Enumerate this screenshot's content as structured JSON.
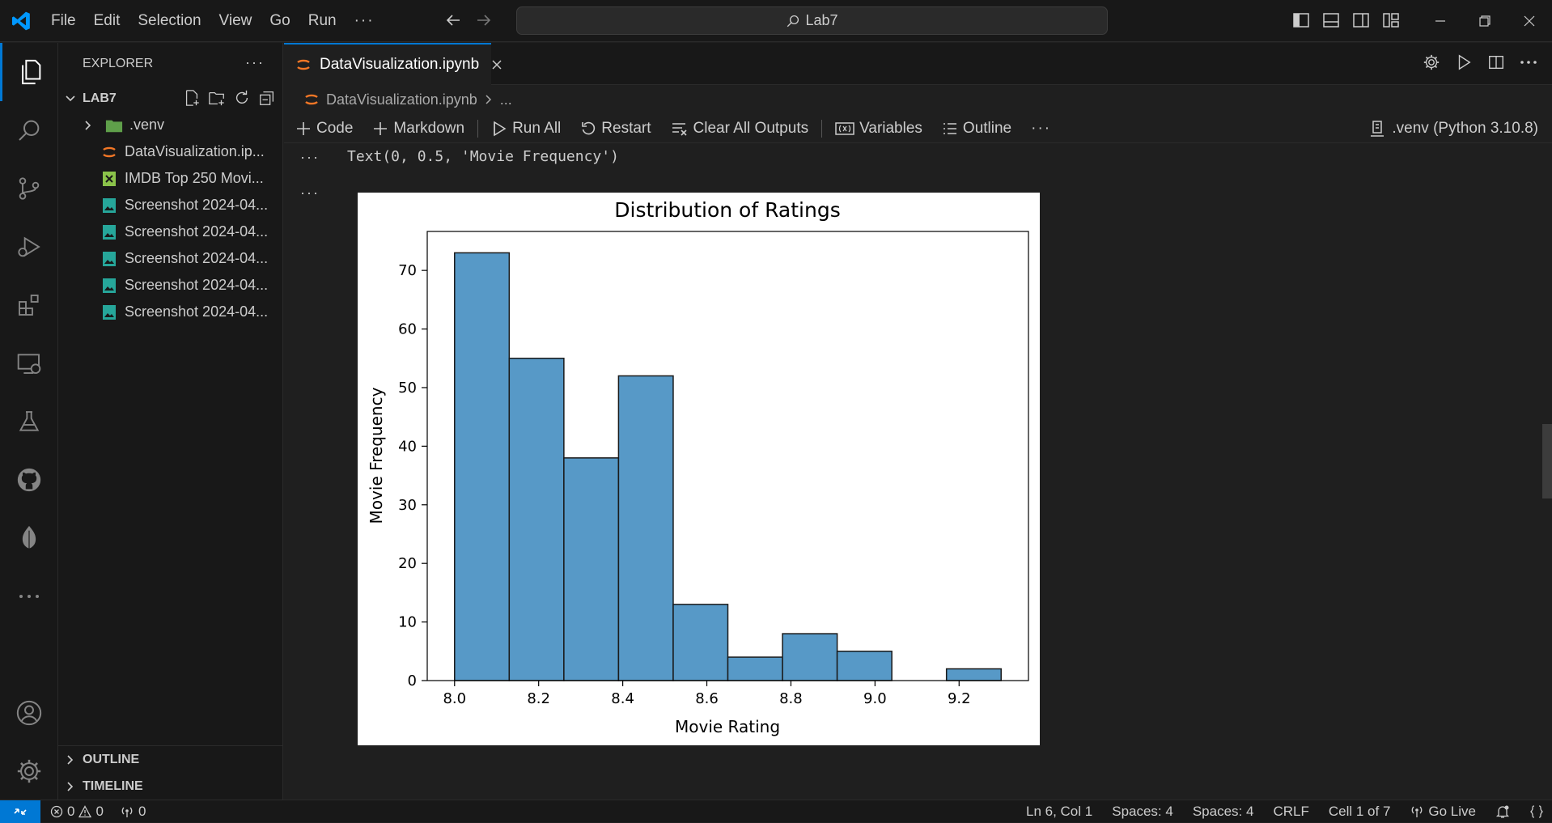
{
  "titlebar": {
    "menu": [
      "File",
      "Edit",
      "Selection",
      "View",
      "Go",
      "Run"
    ],
    "more_label": "···",
    "search_text": "Lab7"
  },
  "sidebar": {
    "title": "EXPLORER",
    "more_label": "···",
    "folder": "LAB7",
    "items": [
      {
        "label": ".venv",
        "icon": "folder-icon"
      },
      {
        "label": "DataVisualization.ip...",
        "icon": "jupyter-icon"
      },
      {
        "label": "IMDB Top 250 Movi...",
        "icon": "excel-icon"
      },
      {
        "label": "Screenshot 2024-04...",
        "icon": "image-icon"
      },
      {
        "label": "Screenshot 2024-04...",
        "icon": "image-icon"
      },
      {
        "label": "Screenshot 2024-04...",
        "icon": "image-icon"
      },
      {
        "label": "Screenshot 2024-04...",
        "icon": "image-icon"
      },
      {
        "label": "Screenshot 2024-04...",
        "icon": "image-icon"
      }
    ],
    "outline": "OUTLINE",
    "timeline": "TIMELINE"
  },
  "editor": {
    "tab_label": "DataVisualization.ipynb",
    "breadcrumb_file": "DataVisualization.ipynb",
    "breadcrumb_rest": "...",
    "toolbar": {
      "code": "Code",
      "markdown": "Markdown",
      "run_all": "Run All",
      "restart": "Restart",
      "clear_outputs": "Clear All Outputs",
      "variables": "Variables",
      "outline": "Outline",
      "more": "···",
      "kernel": ".venv (Python 3.10.8)"
    },
    "output_dots": "···",
    "text_output": "Text(0, 0.5, 'Movie Frequency')"
  },
  "chart_data": {
    "type": "bar",
    "title": "Distribution of Ratings",
    "xlabel": "Movie Rating",
    "ylabel": "Movie Frequency",
    "bin_edges": [
      8.0,
      8.13,
      8.26,
      8.39,
      8.52,
      8.65,
      8.78,
      8.91,
      9.04,
      9.17,
      9.3
    ],
    "values": [
      73,
      55,
      38,
      52,
      13,
      4,
      8,
      5,
      0,
      2
    ],
    "xticks": [
      "8.0",
      "8.2",
      "8.4",
      "8.6",
      "8.8",
      "9.0",
      "9.2"
    ],
    "yticks": [
      "0",
      "10",
      "20",
      "30",
      "40",
      "50",
      "60",
      "70"
    ],
    "xlim": [
      7.935,
      9.365
    ],
    "ylim": [
      0,
      76.65
    ],
    "bar_color": "#5799c7",
    "edge_color": "#1a1a1a",
    "grid": false
  },
  "statusbar": {
    "errors": "0",
    "warnings": "0",
    "ports": "0",
    "position": "Ln 6, Col 1",
    "spaces1": "Spaces: 4",
    "spaces2": "Spaces: 4",
    "eol": "CRLF",
    "cell": "Cell 1 of 7",
    "golive": "Go Live"
  },
  "colors": {
    "accent": "#0078d4",
    "background": "#1f1f1f",
    "sidebar": "#181818"
  }
}
